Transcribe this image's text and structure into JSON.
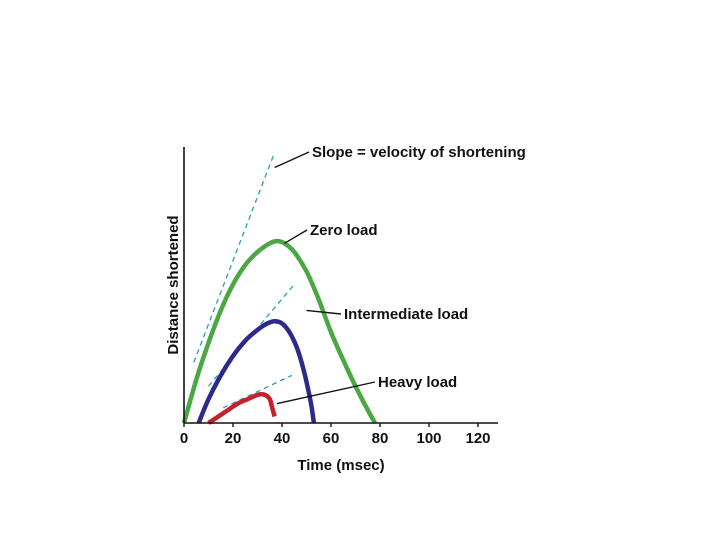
{
  "chart_data": {
    "type": "line",
    "title": "",
    "xlabel": "Time (msec)",
    "ylabel": "Distance shortened",
    "xlim": [
      0,
      130
    ],
    "ylim": [
      0,
      100
    ],
    "xticks": [
      "0",
      "20",
      "40",
      "60",
      "80",
      "100",
      "120"
    ],
    "xtick_values": [
      0,
      20,
      40,
      60,
      80,
      100,
      120
    ],
    "grid": false,
    "series": [
      {
        "name": "Zero load",
        "color": "#4aa844",
        "x": [
          0,
          5,
          10,
          15,
          20,
          25,
          30,
          35,
          38,
          41,
          45,
          50,
          55,
          60,
          65,
          70,
          75,
          78
        ],
        "y": [
          0,
          20,
          37,
          52,
          64,
          73,
          79,
          83,
          84,
          83,
          79,
          70,
          57,
          42,
          29,
          17,
          6,
          0
        ]
      },
      {
        "name": "Intermediate load",
        "color": "#2e2a8c",
        "x": [
          6,
          10,
          15,
          20,
          25,
          30,
          34,
          37,
          40,
          43,
          46,
          48,
          50,
          52,
          53
        ],
        "y": [
          0,
          11,
          22,
          31,
          38,
          43,
          46,
          47,
          46,
          42,
          35,
          28,
          19,
          8,
          0
        ]
      },
      {
        "name": "Heavy load",
        "color": "#c8202a",
        "x": [
          10,
          14,
          18,
          22,
          26,
          30,
          33,
          35,
          36,
          37
        ],
        "y": [
          0,
          3,
          6,
          9,
          11,
          13,
          13,
          11,
          7,
          3
        ]
      }
    ],
    "tangents": [
      {
        "name": "zero-load-tangent",
        "from": [
          4,
          28
        ],
        "to": [
          37,
          125
        ]
      },
      {
        "name": "intermediate-load-tangent",
        "from": [
          10,
          17
        ],
        "to": [
          45,
          64
        ]
      },
      {
        "name": "heavy-load-tangent",
        "from": [
          16,
          7
        ],
        "to": [
          44,
          22
        ]
      }
    ],
    "annotations": [
      {
        "name": "annotation-slope",
        "text": "Slope = velocity of shortening",
        "point": [
          37,
          118
        ]
      },
      {
        "name": "annotation-zero-load",
        "text": "Zero load",
        "point": [
          41,
          83
        ]
      },
      {
        "name": "annotation-intermediate-load",
        "text": "Intermediate load",
        "point": [
          50,
          52
        ]
      },
      {
        "name": "annotation-heavy-load",
        "text": "Heavy load",
        "point": [
          38,
          9
        ]
      }
    ],
    "colors": {
      "axis": "#111111",
      "tangent": "#2e9bb8",
      "leader": "#111111"
    }
  }
}
